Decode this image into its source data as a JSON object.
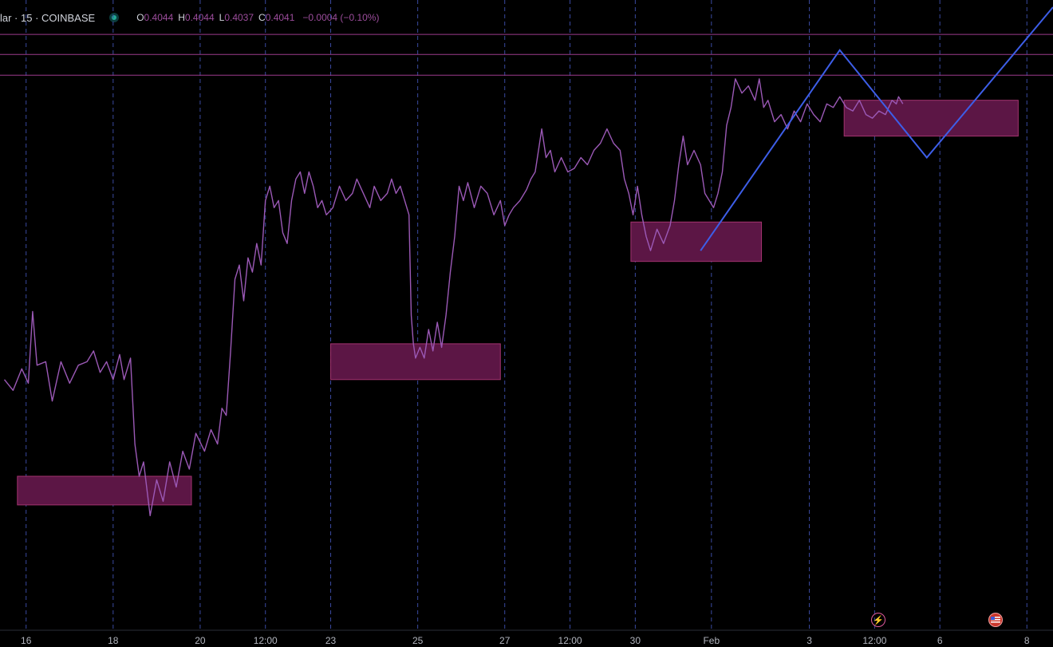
{
  "legend": {
    "symbol": "lar · 15 · COINBASE",
    "open_label": "O",
    "open": "0.4044",
    "high_label": "H",
    "high": "0.4044",
    "low_label": "L",
    "low": "0.4037",
    "close_label": "C",
    "close": "0.4041",
    "change": "−0.0004 (−0.10%)"
  },
  "chart_data": {
    "type": "line",
    "x_ticks": [
      {
        "label": "16",
        "slot": 0
      },
      {
        "label": "18",
        "slot": 2
      },
      {
        "label": "20",
        "slot": 4
      },
      {
        "label": "12:00",
        "slot": 5.5
      },
      {
        "label": "23",
        "slot": 7
      },
      {
        "label": "25",
        "slot": 9
      },
      {
        "label": "27",
        "slot": 11
      },
      {
        "label": "12:00",
        "slot": 12.5
      },
      {
        "label": "30",
        "slot": 14
      },
      {
        "label": "Feb",
        "slot": 15.75
      },
      {
        "label": "3",
        "slot": 18
      },
      {
        "label": "12:00",
        "slot": 19.5
      },
      {
        "label": "6",
        "slot": 21
      },
      {
        "label": "8",
        "slot": 23
      }
    ],
    "series": [
      {
        "color": "#9b59b6",
        "points": [
          [
            -0.5,
            0.6
          ],
          [
            -0.3,
            0.45
          ],
          [
            -0.1,
            0.75
          ],
          [
            0.05,
            0.55
          ],
          [
            0.15,
            1.55
          ],
          [
            0.25,
            0.8
          ],
          [
            0.45,
            0.85
          ],
          [
            0.6,
            0.3
          ],
          [
            0.8,
            0.85
          ],
          [
            1.0,
            0.55
          ],
          [
            1.2,
            0.8
          ],
          [
            1.4,
            0.85
          ],
          [
            1.55,
            1.0
          ],
          [
            1.7,
            0.7
          ],
          [
            1.85,
            0.85
          ],
          [
            2.0,
            0.6
          ],
          [
            2.15,
            0.95
          ],
          [
            2.25,
            0.6
          ],
          [
            2.4,
            0.9
          ],
          [
            2.5,
            -0.3
          ],
          [
            2.6,
            -0.75
          ],
          [
            2.7,
            -0.55
          ],
          [
            2.85,
            -1.3
          ],
          [
            3.0,
            -0.8
          ],
          [
            3.15,
            -1.1
          ],
          [
            3.3,
            -0.55
          ],
          [
            3.45,
            -0.9
          ],
          [
            3.6,
            -0.4
          ],
          [
            3.75,
            -0.65
          ],
          [
            3.9,
            -0.15
          ],
          [
            4.1,
            -0.4
          ],
          [
            4.25,
            -0.1
          ],
          [
            4.4,
            -0.3
          ],
          [
            4.5,
            0.2
          ],
          [
            4.6,
            0.1
          ],
          [
            4.7,
            1.0
          ],
          [
            4.8,
            2.0
          ],
          [
            4.9,
            2.2
          ],
          [
            5.0,
            1.7
          ],
          [
            5.1,
            2.3
          ],
          [
            5.2,
            2.1
          ],
          [
            5.3,
            2.5
          ],
          [
            5.4,
            2.2
          ],
          [
            5.5,
            3.1
          ],
          [
            5.6,
            3.3
          ],
          [
            5.7,
            3.0
          ],
          [
            5.8,
            3.1
          ],
          [
            5.9,
            2.65
          ],
          [
            6.0,
            2.5
          ],
          [
            6.1,
            3.1
          ],
          [
            6.2,
            3.4
          ],
          [
            6.3,
            3.5
          ],
          [
            6.4,
            3.2
          ],
          [
            6.5,
            3.5
          ],
          [
            6.6,
            3.3
          ],
          [
            6.7,
            3.0
          ],
          [
            6.8,
            3.1
          ],
          [
            6.9,
            2.9
          ],
          [
            7.05,
            3.0
          ],
          [
            7.2,
            3.3
          ],
          [
            7.35,
            3.1
          ],
          [
            7.5,
            3.2
          ],
          [
            7.6,
            3.4
          ],
          [
            7.75,
            3.2
          ],
          [
            7.9,
            3.0
          ],
          [
            8.0,
            3.3
          ],
          [
            8.15,
            3.1
          ],
          [
            8.3,
            3.2
          ],
          [
            8.4,
            3.4
          ],
          [
            8.5,
            3.2
          ],
          [
            8.6,
            3.3
          ],
          [
            8.7,
            3.1
          ],
          [
            8.8,
            2.9
          ],
          [
            8.85,
            1.5
          ],
          [
            8.9,
            1.1
          ],
          [
            8.95,
            0.9
          ],
          [
            9.05,
            1.05
          ],
          [
            9.15,
            0.9
          ],
          [
            9.25,
            1.3
          ],
          [
            9.35,
            1.0
          ],
          [
            9.45,
            1.4
          ],
          [
            9.55,
            1.05
          ],
          [
            9.65,
            1.5
          ],
          [
            9.75,
            2.1
          ],
          [
            9.85,
            2.6
          ],
          [
            9.95,
            3.3
          ],
          [
            10.05,
            3.1
          ],
          [
            10.15,
            3.35
          ],
          [
            10.3,
            3.0
          ],
          [
            10.45,
            3.3
          ],
          [
            10.6,
            3.2
          ],
          [
            10.75,
            2.9
          ],
          [
            10.9,
            3.1
          ],
          [
            11.0,
            2.75
          ],
          [
            11.1,
            2.9
          ],
          [
            11.2,
            3.0
          ],
          [
            11.35,
            3.1
          ],
          [
            11.5,
            3.25
          ],
          [
            11.6,
            3.4
          ],
          [
            11.7,
            3.5
          ],
          [
            11.8,
            3.9
          ],
          [
            11.85,
            4.1
          ],
          [
            11.95,
            3.7
          ],
          [
            12.05,
            3.8
          ],
          [
            12.15,
            3.5
          ],
          [
            12.3,
            3.7
          ],
          [
            12.45,
            3.5
          ],
          [
            12.6,
            3.55
          ],
          [
            12.75,
            3.7
          ],
          [
            12.9,
            3.6
          ],
          [
            13.05,
            3.8
          ],
          [
            13.2,
            3.9
          ],
          [
            13.35,
            4.1
          ],
          [
            13.5,
            3.9
          ],
          [
            13.65,
            3.8
          ],
          [
            13.75,
            3.4
          ],
          [
            13.85,
            3.2
          ],
          [
            13.95,
            2.9
          ],
          [
            14.05,
            3.3
          ],
          [
            14.15,
            2.9
          ],
          [
            14.25,
            2.6
          ],
          [
            14.35,
            2.4
          ],
          [
            14.5,
            2.7
          ],
          [
            14.65,
            2.5
          ],
          [
            14.8,
            2.75
          ],
          [
            14.9,
            3.1
          ],
          [
            15.0,
            3.6
          ],
          [
            15.1,
            4.0
          ],
          [
            15.2,
            3.6
          ],
          [
            15.35,
            3.8
          ],
          [
            15.5,
            3.6
          ],
          [
            15.6,
            3.2
          ],
          [
            15.7,
            3.1
          ],
          [
            15.8,
            3.0
          ],
          [
            15.9,
            3.2
          ],
          [
            16.0,
            3.5
          ],
          [
            16.1,
            4.15
          ],
          [
            16.2,
            4.4
          ],
          [
            16.3,
            4.8
          ],
          [
            16.45,
            4.6
          ],
          [
            16.6,
            4.7
          ],
          [
            16.75,
            4.5
          ],
          [
            16.85,
            4.8
          ],
          [
            16.95,
            4.4
          ],
          [
            17.05,
            4.5
          ],
          [
            17.2,
            4.2
          ],
          [
            17.35,
            4.3
          ],
          [
            17.5,
            4.1
          ],
          [
            17.65,
            4.35
          ],
          [
            17.8,
            4.2
          ],
          [
            17.95,
            4.45
          ],
          [
            18.1,
            4.3
          ],
          [
            18.25,
            4.2
          ],
          [
            18.4,
            4.45
          ],
          [
            18.55,
            4.4
          ],
          [
            18.7,
            4.55
          ],
          [
            18.85,
            4.4
          ],
          [
            19.0,
            4.35
          ],
          [
            19.15,
            4.5
          ],
          [
            19.3,
            4.3
          ],
          [
            19.45,
            4.25
          ],
          [
            19.6,
            4.35
          ],
          [
            19.75,
            4.3
          ],
          [
            19.9,
            4.5
          ],
          [
            20.0,
            4.45
          ],
          [
            20.05,
            4.55
          ],
          [
            20.15,
            4.45
          ]
        ]
      }
    ],
    "price_levels": [
      5.42,
      5.14,
      4.85
    ],
    "zones": [
      {
        "x0": -0.2,
        "x1": 3.8,
        "y0": -1.15,
        "y1": -0.75
      },
      {
        "x0": 7.0,
        "x1": 10.9,
        "y0": 0.6,
        "y1": 1.1
      },
      {
        "x0": 13.9,
        "x1": 16.9,
        "y0": 2.25,
        "y1": 2.8
      },
      {
        "x0": 18.8,
        "x1": 22.8,
        "y0": 4.0,
        "y1": 4.5
      }
    ],
    "projection": {
      "color": "#3d5ee8",
      "points": [
        [
          15.5,
          2.4
        ],
        [
          18.7,
          5.2
        ],
        [
          20.7,
          3.7
        ],
        [
          23.6,
          5.8
        ]
      ]
    },
    "grid": "vertical-dashed",
    "ylim": [
      -2.9,
      5.9
    ],
    "xlim": [
      -0.6,
      23.6
    ]
  },
  "bottom_icons": [
    "lightning-icon",
    "flag-icon"
  ],
  "colors": {
    "background": "#000000",
    "price": "#9b59b6",
    "zone_fill": "#5c1645",
    "zone_stroke": "#a3336f",
    "level": "#9c3a8c",
    "projection": "#3d5ee8",
    "grid": "#3a4aa0",
    "axis_text": "#b2b5be"
  }
}
